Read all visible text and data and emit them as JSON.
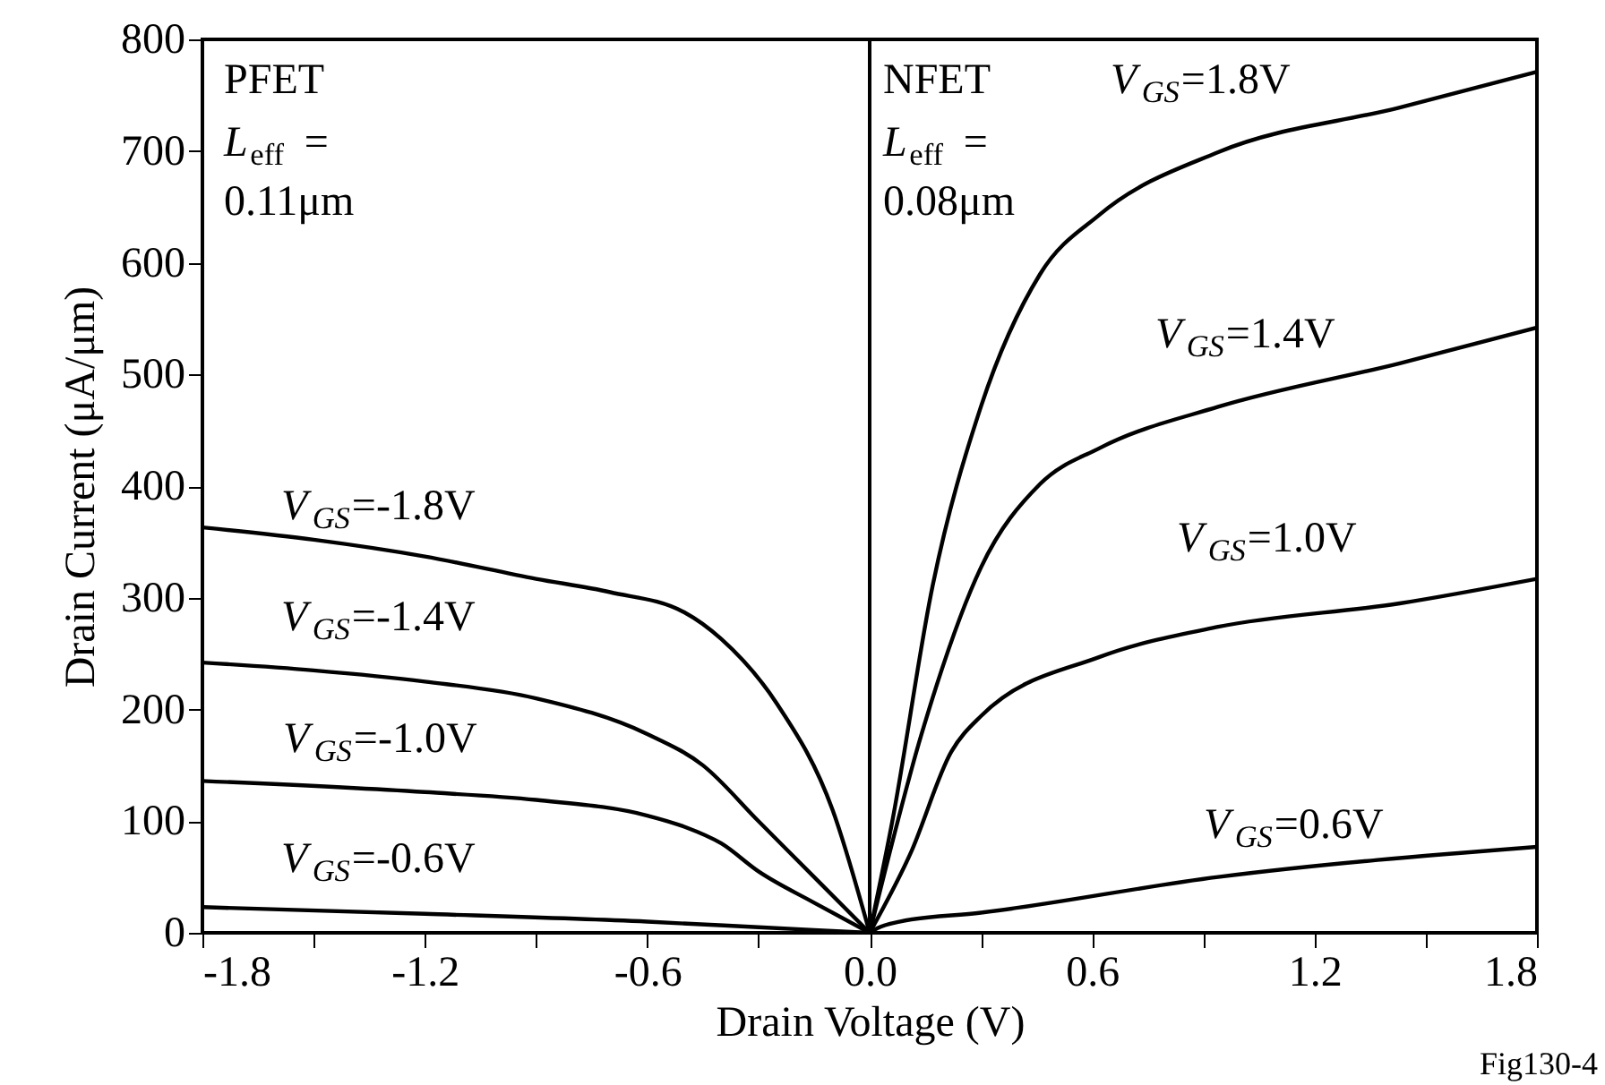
{
  "chart_data": {
    "type": "line",
    "xlabel": "Drain Voltage (V)",
    "ylabel": "Drain Current (μA/μm)",
    "xlim": [
      -1.8,
      1.8
    ],
    "ylim": [
      0,
      800
    ],
    "xticks": [
      -1.8,
      {
        "value": -1.5,
        "label": null
      },
      -1.2,
      {
        "value": -0.9,
        "label": null
      },
      -0.6,
      {
        "value": -0.3,
        "label": null
      },
      {
        "value": 0,
        "label": "0.0"
      },
      {
        "value": 0.3,
        "label": null
      },
      0.6,
      {
        "value": 0.9,
        "label": null
      },
      1.2,
      {
        "value": 1.5,
        "label": null
      },
      1.8
    ],
    "yticks": [
      0,
      100,
      200,
      300,
      400,
      500,
      600,
      700,
      800
    ],
    "grid": false,
    "marker": "none",
    "line_style": "solid",
    "ref_lines": [
      {
        "axis": "x",
        "value": 0,
        "color": "#000000"
      }
    ],
    "series": [
      {
        "name": "V$_{GS}$=-1.8V",
        "color": "#000000",
        "x": [
          -1.8,
          -1.5,
          -1.2,
          -0.9,
          -0.7,
          -0.5,
          -0.4,
          -0.25,
          -0.1,
          0
        ],
        "values": [
          363,
          352,
          337,
          317,
          305,
          287,
          263,
          205,
          110,
          0
        ]
      },
      {
        "name": "V$_{GS}$=-1.4V",
        "color": "#000000",
        "x": [
          -1.8,
          -1.5,
          -1.2,
          -0.9,
          -0.6,
          -0.45,
          -0.3,
          -0.15,
          0
        ],
        "values": [
          242,
          235,
          225,
          210,
          178,
          150,
          100,
          50,
          0
        ]
      },
      {
        "name": "V$_{GS}$=-1.0V",
        "color": "#000000",
        "x": [
          -1.8,
          -1.2,
          -0.9,
          -0.6,
          -0.5,
          -0.4,
          -0.3,
          -0.15,
          0
        ],
        "values": [
          136,
          126,
          119,
          105,
          95,
          80,
          55,
          27,
          0
        ]
      },
      {
        "name": "V$_{GS}$=-0.6V",
        "color": "#000000",
        "x": [
          -1.8,
          -1.2,
          -0.6,
          -0.3,
          0
        ],
        "values": [
          23,
          17,
          10,
          5,
          0
        ]
      },
      {
        "name": "V$_{GS}$=1.8V",
        "color": "#000000",
        "x": [
          0,
          0.06,
          0.17,
          0.3,
          0.46,
          0.62,
          0.94,
          1.43,
          1.8
        ],
        "values": [
          0,
          98,
          311,
          471,
          590,
          643,
          699,
          739,
          771
        ]
      },
      {
        "name": "V$_{GS}$=1.4V",
        "color": "#000000",
        "x": [
          0,
          0.14,
          0.3,
          0.46,
          0.62,
          0.94,
          1.43,
          1.8
        ],
        "values": [
          0,
          178,
          327,
          402,
          434,
          471,
          510,
          542
        ]
      },
      {
        "name": "V$_{GS}$=1.0V",
        "color": "#000000",
        "x": [
          0,
          0.11,
          0.22,
          0.3,
          0.62,
          0.94,
          1.43,
          1.8
        ],
        "values": [
          0,
          71,
          162,
          194,
          247,
          274,
          295,
          317
        ]
      },
      {
        "name": "V$_{GS}$=0.6V",
        "color": "#000000",
        "x": [
          0,
          0.02,
          0.08,
          0.3,
          0.94,
          1.8
        ],
        "values": [
          0,
          4,
          10,
          18,
          50,
          77
        ]
      }
    ],
    "annotations": [
      "PFET",
      "L$_{eff}$ =",
      "0.11μm",
      "NFET",
      "L$_{eff}$ =",
      "0.08μm",
      "Fig130-4"
    ]
  }
}
